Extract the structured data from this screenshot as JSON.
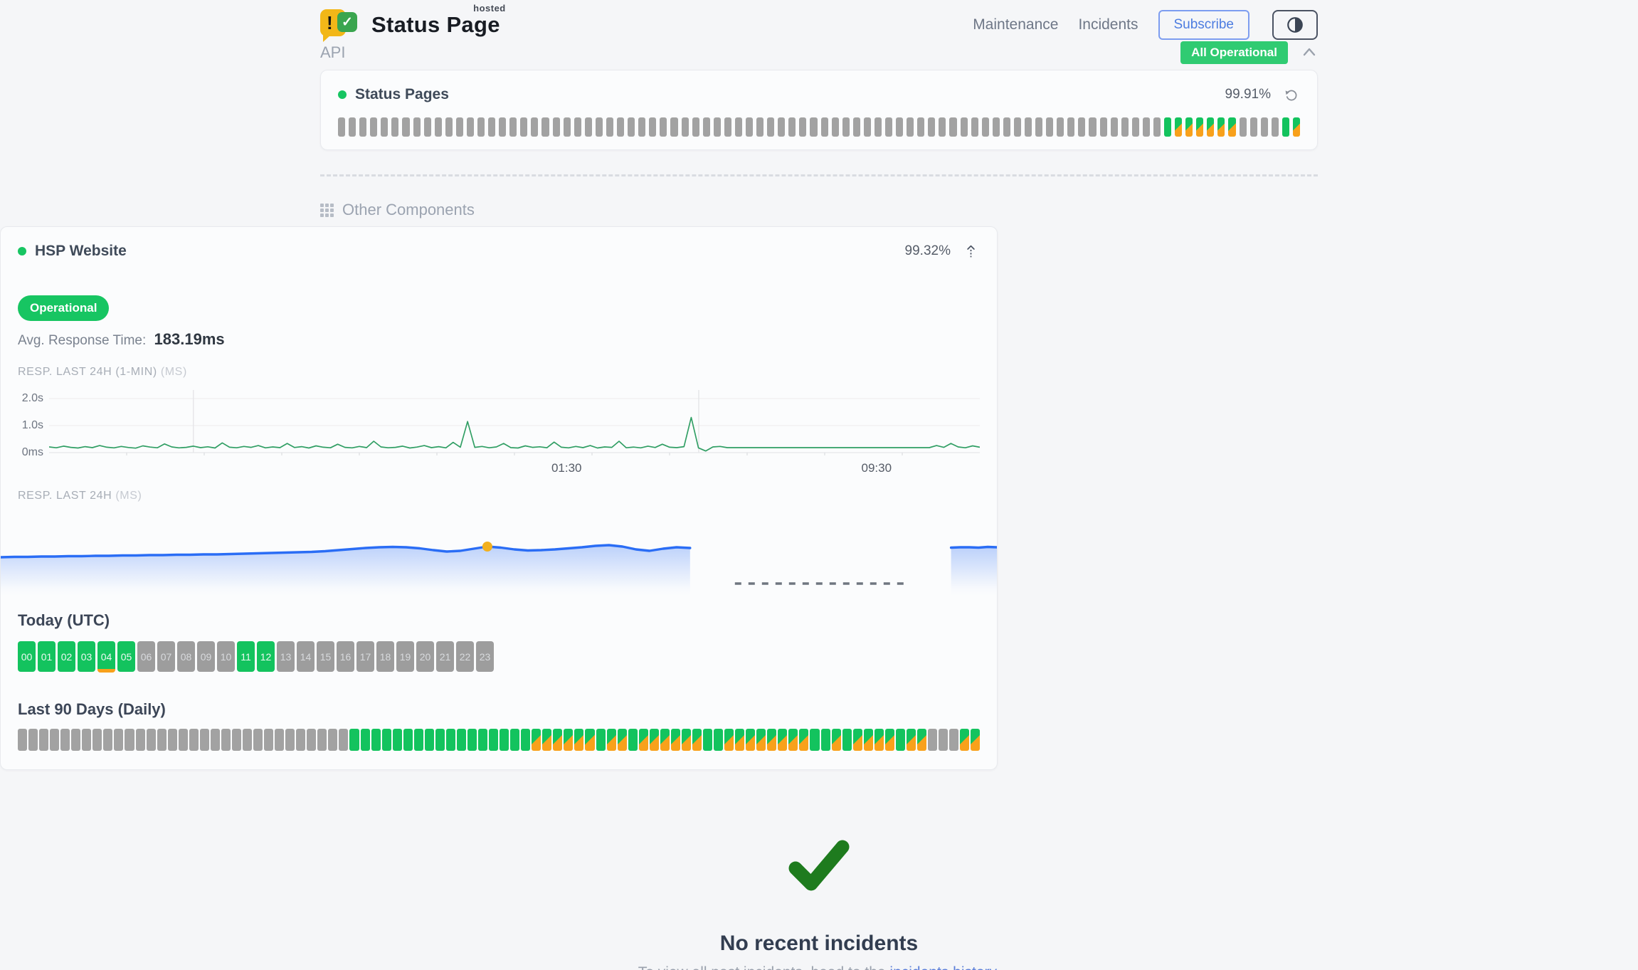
{
  "header": {
    "logo": {
      "bang": "!",
      "check": "✓",
      "title": "Status Page",
      "superscript": "hosted"
    },
    "nav": [
      {
        "label": "Maintenance"
      },
      {
        "label": "Incidents"
      }
    ],
    "subscribe_label": "Subscribe",
    "status_badge": "All Operational"
  },
  "api_section": {
    "title": "API",
    "component": {
      "name": "Status Pages",
      "uptime": "99.91%"
    },
    "bars": "nnnnnnnnnnnnnnnnnnnnnnnnnnnnnnnnnnnnnnnnnnnnnnnnnnnnnnnnnnnnnnnnnnnnnnnnnnnnnummmmmmnnnnum"
  },
  "other_section": {
    "title": "Other Components",
    "component": {
      "name": "HSP Website",
      "uptime": "99.32%",
      "status": "Operational",
      "avg_label": "Avg. Response Time:",
      "avg_value": "183.19ms"
    },
    "chart_1min": {
      "label": "RESP. LAST 24H (1-MIN)",
      "unit": "(MS)",
      "type": "line",
      "y_ticks": [
        {
          "label": "2.0s",
          "ms": 2000
        },
        {
          "label": "1.0s",
          "ms": 1000
        },
        {
          "label": "0ms",
          "ms": 0
        }
      ],
      "x_ticks": [
        {
          "label": "01:30",
          "pos": 0.556
        },
        {
          "label": "09:30",
          "pos": 0.889
        }
      ],
      "v_gridlines": [
        0.155,
        0.698
      ],
      "values_ms": [
        210,
        180,
        240,
        195,
        170,
        220,
        185,
        260,
        200,
        175,
        230,
        190,
        165,
        250,
        205,
        180,
        320,
        210,
        175,
        195,
        240,
        185,
        215,
        170,
        360,
        200,
        180,
        230,
        195,
        260,
        175,
        210,
        185,
        340,
        190,
        220,
        170,
        250,
        200,
        180,
        310,
        195,
        175,
        230,
        185,
        420,
        210,
        180,
        195,
        240,
        170,
        205,
        260,
        185,
        220,
        175,
        380,
        200,
        1150,
        195,
        230,
        180,
        210,
        340,
        185,
        170,
        250,
        195,
        215,
        180,
        390,
        200,
        175,
        230,
        185,
        260,
        170,
        210,
        195,
        420,
        180,
        205,
        175,
        240,
        190,
        310,
        200,
        185,
        220,
        1300,
        175,
        60,
        210,
        230,
        185,
        185,
        185,
        185,
        185,
        185,
        185,
        185,
        185,
        185,
        185,
        185,
        185,
        185,
        185,
        185,
        185,
        185,
        185,
        185,
        185,
        185,
        185,
        185,
        185,
        185,
        185,
        185,
        185,
        260,
        195,
        340,
        210,
        180,
        250,
        200
      ]
    },
    "chart_24h": {
      "label": "RESP. LAST 24H",
      "unit": "(MS)",
      "type": "area",
      "main": {
        "span": [
          0,
          0.692
        ],
        "values": [
          30,
          31,
          31,
          32,
          32,
          33,
          33,
          34,
          34,
          35,
          35,
          36,
          36,
          37,
          37,
          38,
          38,
          39,
          40,
          41,
          42,
          43,
          44,
          45,
          47,
          50,
          53,
          56,
          58,
          59,
          58,
          55,
          50,
          46,
          48,
          54,
          60,
          57,
          52,
          49,
          50,
          52,
          55,
          58,
          62,
          64,
          60,
          52,
          48,
          54,
          58,
          56
        ],
        "dot_index": 36
      },
      "gap_dash_span": [
        0.737,
        0.909
      ],
      "tail": {
        "span": [
          0.954,
          1.0
        ],
        "values": [
          57,
          58,
          58,
          57,
          59,
          58
        ]
      }
    },
    "today": {
      "title": "Today (UTC)",
      "labels": [
        "00",
        "01",
        "02",
        "03",
        "04",
        "05",
        "06",
        "07",
        "08",
        "09",
        "10",
        "11",
        "12",
        "13",
        "14",
        "15",
        "16",
        "17",
        "18",
        "19",
        "20",
        "21",
        "22",
        "23"
      ],
      "states": "uuuuuunnnnnuunnnnnnnnnnn",
      "marker_hour": 4
    },
    "last90": {
      "title": "Last 90 Days (Daily)",
      "days": "nnnnnnnnnnnnnnnnnnnnnnnnnnnnnnnuuuuuuuuuuuuuuuuummmmmmummummmmmmuummmmmmmmuumummmmummnnnmm"
    }
  },
  "footer": {
    "title": "No recent incidents",
    "subtext_prefix": "To view all past incidents, head to the ",
    "link_label": "incidents history",
    "subtext_suffix": "."
  },
  "colors": {
    "green": "#13c35e",
    "orange": "#f8a11b",
    "grey": "#a2a2a2",
    "badge_green": "#30cb72",
    "line_green": "#2f9e63",
    "line_blue": "#2a6df5",
    "dot_yellow": "#f2b01e",
    "check_green": "#1e7b1e"
  }
}
